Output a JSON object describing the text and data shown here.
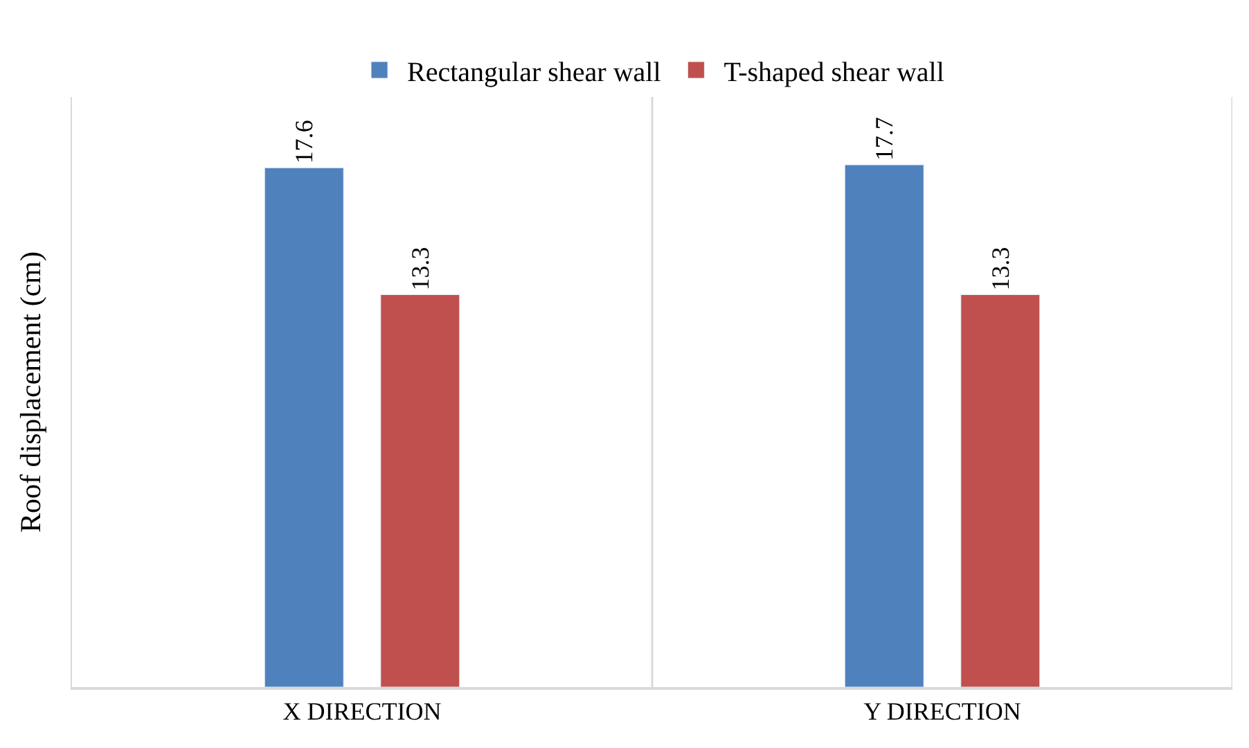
{
  "chart_data": {
    "type": "bar",
    "ylabel": "Roof displacement (cm)",
    "categories": [
      "X DIRECTION",
      "Y DIRECTION"
    ],
    "series": [
      {
        "name": "Rectangular shear wall",
        "color": "#4f81bd",
        "values": [
          17.6,
          17.7
        ]
      },
      {
        "name": "T-shaped shear wall",
        "color": "#c0504d",
        "values": [
          13.3,
          13.3
        ]
      }
    ],
    "ylim": [
      0,
      20
    ],
    "data_labels": true,
    "grid": "x",
    "legend": "top",
    "tick_labels": "x"
  }
}
